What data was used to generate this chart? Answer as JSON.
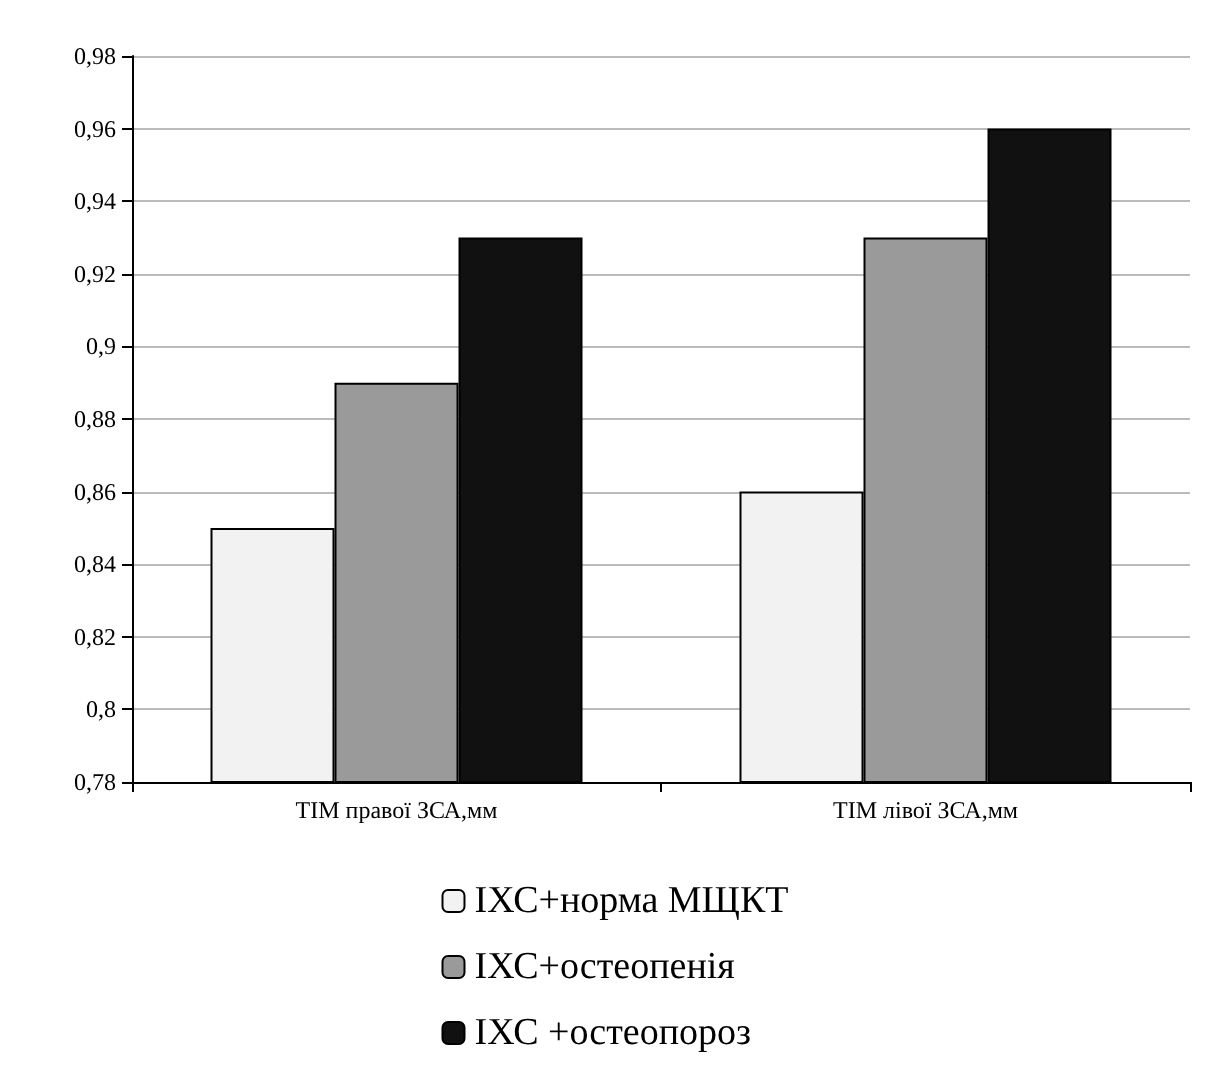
{
  "chart_data": {
    "type": "bar",
    "categories": [
      "ТІМ правої ЗСА,мм",
      "ТІМ лівої ЗСА,мм"
    ],
    "series": [
      {
        "name": "ІХС+норма МЩКТ",
        "color": "#f2f2f2",
        "values": [
          0.85,
          0.86
        ]
      },
      {
        "name": "ІХС+остеопенія",
        "color": "#9a9a9a",
        "values": [
          0.89,
          0.93
        ]
      },
      {
        "name": "ІХС +остеопороз",
        "color": "#111111",
        "values": [
          0.93,
          0.96
        ]
      }
    ],
    "ylim": [
      0.78,
      0.98
    ],
    "yticks": [
      {
        "value": 0.78,
        "label": "0,78"
      },
      {
        "value": 0.8,
        "label": "0,8"
      },
      {
        "value": 0.82,
        "label": "0,82"
      },
      {
        "value": 0.84,
        "label": "0,84"
      },
      {
        "value": 0.86,
        "label": "0,86"
      },
      {
        "value": 0.88,
        "label": "0,88"
      },
      {
        "value": 0.9,
        "label": "0,9"
      },
      {
        "value": 0.92,
        "label": "0,92"
      },
      {
        "value": 0.94,
        "label": "0,94"
      },
      {
        "value": 0.96,
        "label": "0,96"
      },
      {
        "value": 0.98,
        "label": "0,98"
      }
    ],
    "grid": "y",
    "legend": "bottom"
  }
}
